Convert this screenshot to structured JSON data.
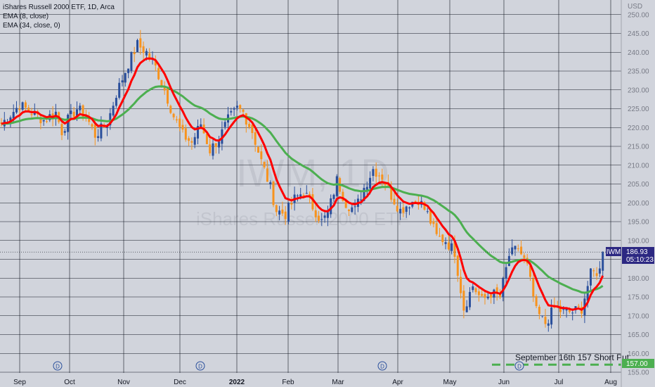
{
  "legend": {
    "title": "iShares Russell 2000 ETF, 1D, Arca",
    "ema_fast": "EMA (8, close)",
    "ema_slow": "EMA (34, close, 0)"
  },
  "currency_label": "USD",
  "watermark": {
    "symbol": "IWM, 1D",
    "name": "iShares Russell 2000 ETF"
  },
  "price_tag": {
    "symbol": "IWM",
    "price": "186.93",
    "countdown": "05:10:23"
  },
  "target_tag": {
    "price": "157.00"
  },
  "annotation": "September 16th 157 Short Put",
  "dividend_marker": "D",
  "colors": {
    "up": "#2a4f9c",
    "down": "#f7931e",
    "ema_fast": "#ff0000",
    "ema_slow": "#4caf50",
    "background": "#d1d4dc",
    "grid": "#131722",
    "target_line": "#4caf50",
    "price_tag_bg": "#2c2882"
  },
  "chart_data": {
    "type": "candlestick",
    "ylim": [
      155,
      250
    ],
    "y_ticks": [
      "155.00",
      "160.00",
      "165.00",
      "170.00",
      "175.00",
      "180.00",
      "185.00",
      "190.00",
      "195.00",
      "200.00",
      "205.00",
      "210.00",
      "215.00",
      "220.00",
      "225.00",
      "230.00",
      "235.00",
      "240.00",
      "245.00",
      "250.00"
    ],
    "x_ticks": [
      {
        "label": "Sep",
        "bold": false
      },
      {
        "label": "Oct",
        "bold": false
      },
      {
        "label": "Nov",
        "bold": false
      },
      {
        "label": "Dec",
        "bold": false
      },
      {
        "label": "2022",
        "bold": true
      },
      {
        "label": "Feb",
        "bold": false
      },
      {
        "label": "Mar",
        "bold": false
      },
      {
        "label": "Apr",
        "bold": false
      },
      {
        "label": "May",
        "bold": false
      },
      {
        "label": "Jun",
        "bold": false
      },
      {
        "label": "Jul",
        "bold": false
      },
      {
        "label": "Aug",
        "bold": false
      }
    ],
    "anchors": [
      [
        0,
        221
      ],
      [
        6,
        226
      ],
      [
        10,
        224
      ],
      [
        14,
        222
      ],
      [
        18,
        224
      ],
      [
        20,
        219
      ],
      [
        22,
        222
      ],
      [
        25,
        225
      ],
      [
        28,
        223
      ],
      [
        31,
        218
      ],
      [
        35,
        221
      ],
      [
        38,
        229
      ],
      [
        42,
        237
      ],
      [
        45,
        242
      ],
      [
        48,
        240
      ],
      [
        51,
        236
      ],
      [
        54,
        230
      ],
      [
        57,
        223
      ],
      [
        60,
        218
      ],
      [
        63,
        216
      ],
      [
        66,
        221
      ],
      [
        69,
        214
      ],
      [
        72,
        217
      ],
      [
        75,
        222
      ],
      [
        78,
        225
      ],
      [
        80,
        224
      ],
      [
        83,
        219
      ],
      [
        86,
        211
      ],
      [
        89,
        204
      ],
      [
        91,
        198
      ],
      [
        94,
        197
      ],
      [
        97,
        201
      ],
      [
        100,
        203
      ],
      [
        103,
        199
      ],
      [
        106,
        195
      ],
      [
        108,
        197
      ],
      [
        111,
        206
      ],
      [
        114,
        200
      ],
      [
        117,
        198
      ],
      [
        120,
        204
      ],
      [
        123,
        209
      ],
      [
        126,
        207
      ],
      [
        129,
        202
      ],
      [
        132,
        198
      ],
      [
        135,
        200
      ],
      [
        138,
        201
      ],
      [
        141,
        197
      ],
      [
        144,
        191
      ],
      [
        147,
        190
      ],
      [
        150,
        187
      ],
      [
        153,
        172
      ],
      [
        156,
        178
      ],
      [
        159,
        174
      ],
      [
        162,
        176
      ],
      [
        165,
        175
      ],
      [
        168,
        186
      ],
      [
        171,
        188
      ],
      [
        174,
        183
      ],
      [
        177,
        171
      ],
      [
        180,
        168
      ],
      [
        183,
        172
      ],
      [
        186,
        171
      ],
      [
        189,
        171
      ],
      [
        192,
        172
      ],
      [
        195,
        181
      ],
      [
        198,
        182
      ],
      [
        199,
        187
      ]
    ],
    "series": [
      {
        "name": "EMA (8, close)",
        "period": 8
      },
      {
        "name": "EMA (34, close, 0)",
        "period": 34
      }
    ],
    "last_price": 186.93,
    "target_level": 157.0,
    "grid": true,
    "legend_position": "top-left"
  }
}
